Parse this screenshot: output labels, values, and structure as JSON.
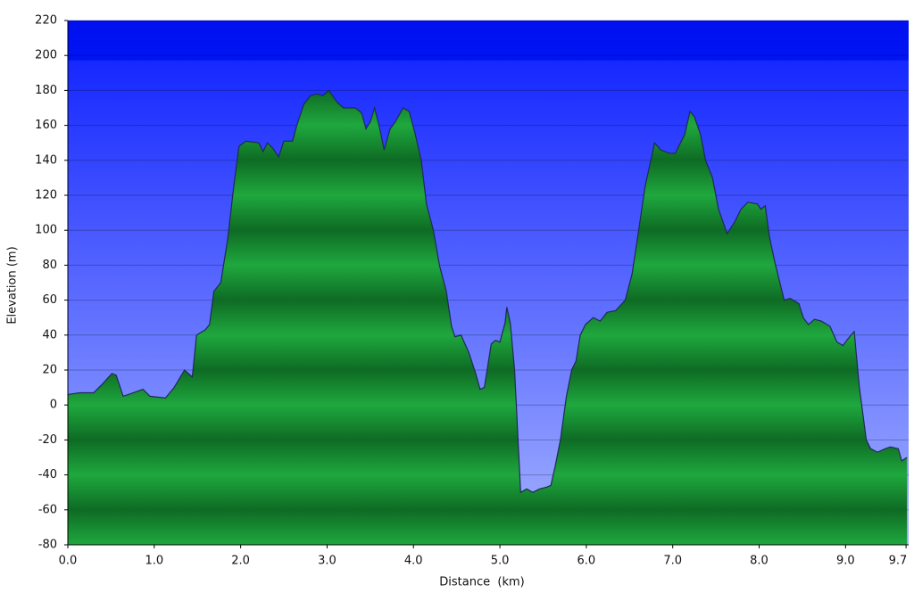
{
  "chart_data": {
    "type": "area",
    "xlabel": "Distance  (km)",
    "ylabel": "Elevation (m)",
    "xlim": [
      0,
      9.73
    ],
    "ylim": [
      -80,
      220
    ],
    "xticks": [
      {
        "value": 0,
        "label": "0.0"
      },
      {
        "value": 1,
        "label": "1.0"
      },
      {
        "value": 2,
        "label": "2.0"
      },
      {
        "value": 3,
        "label": "3.0"
      },
      {
        "value": 4,
        "label": "4.0"
      },
      {
        "value": 5,
        "label": "5.0"
      },
      {
        "value": 6,
        "label": "6.0"
      },
      {
        "value": 7,
        "label": "7.0"
      },
      {
        "value": 8,
        "label": "8.0"
      },
      {
        "value": 9,
        "label": "9.0"
      },
      {
        "value": 9.7,
        "label": "9.7"
      }
    ],
    "yticks": [
      -80,
      -60,
      -40,
      -20,
      0,
      20,
      40,
      60,
      80,
      100,
      120,
      140,
      160,
      180,
      200,
      220
    ],
    "grid": true,
    "color": "#1fa83e",
    "x": [
      0,
      0.14,
      0.3,
      0.4,
      0.51,
      0.56,
      0.64,
      0.76,
      0.87,
      0.95,
      1.13,
      1.23,
      1.35,
      1.44,
      1.49,
      1.59,
      1.64,
      1.69,
      1.77,
      1.85,
      1.92,
      1.98,
      2.06,
      2.21,
      2.26,
      2.31,
      2.37,
      2.44,
      2.5,
      2.6,
      2.65,
      2.73,
      2.81,
      2.88,
      2.95,
      3.02,
      3.12,
      3.19,
      3.33,
      3.4,
      3.45,
      3.5,
      3.55,
      3.61,
      3.66,
      3.73,
      3.79,
      3.88,
      3.95,
      4.02,
      4.09,
      4.15,
      4.23,
      4.3,
      4.38,
      4.44,
      4.48,
      4.55,
      4.64,
      4.72,
      4.77,
      4.82,
      4.9,
      4.95,
      5.0,
      5.06,
      5.08,
      5.12,
      5.17,
      5.24,
      5.31,
      5.38,
      5.46,
      5.54,
      5.59,
      5.64,
      5.7,
      5.77,
      5.83,
      5.88,
      5.93,
      5.99,
      6.08,
      6.16,
      6.24,
      6.34,
      6.45,
      6.53,
      6.6,
      6.68,
      6.79,
      6.86,
      6.96,
      7.03,
      7.09,
      7.14,
      7.2,
      7.25,
      7.32,
      7.38,
      7.46,
      7.53,
      7.63,
      7.72,
      7.79,
      7.87,
      7.98,
      8.02,
      8.07,
      8.12,
      8.18,
      8.29,
      8.36,
      8.46,
      8.51,
      8.57,
      8.64,
      8.72,
      8.82,
      8.9,
      8.97,
      9.03,
      9.1,
      9.16,
      9.24,
      9.29,
      9.37,
      9.46,
      9.52,
      9.61,
      9.65,
      9.71
    ],
    "y": [
      6,
      7,
      7,
      12,
      18,
      17,
      5,
      7,
      9,
      5,
      4,
      10,
      20,
      16,
      40,
      43,
      46,
      65,
      70,
      95,
      125,
      148,
      151,
      150,
      145,
      150,
      147,
      142,
      151,
      151,
      160,
      172,
      177,
      178,
      177,
      180,
      173,
      170,
      170,
      167,
      158,
      162,
      170,
      158,
      146,
      158,
      162,
      170,
      168,
      155,
      140,
      115,
      100,
      80,
      65,
      45,
      39,
      40,
      30,
      18,
      9,
      10,
      35,
      37,
      36,
      47,
      56,
      47,
      20,
      -50,
      -48,
      -50,
      -48,
      -47,
      -46,
      -35,
      -20,
      5,
      20,
      25,
      40,
      46,
      50,
      48,
      53,
      54,
      60,
      75,
      98,
      125,
      150,
      146,
      144,
      144,
      150,
      155,
      168,
      165,
      155,
      140,
      130,
      112,
      98,
      105,
      112,
      116,
      115,
      112,
      114,
      96,
      82,
      60,
      61,
      58,
      50,
      46,
      49,
      48,
      45,
      36,
      34,
      38,
      42,
      10,
      -20,
      -25,
      -27,
      -25,
      -24,
      -25,
      -32,
      -30
    ]
  }
}
